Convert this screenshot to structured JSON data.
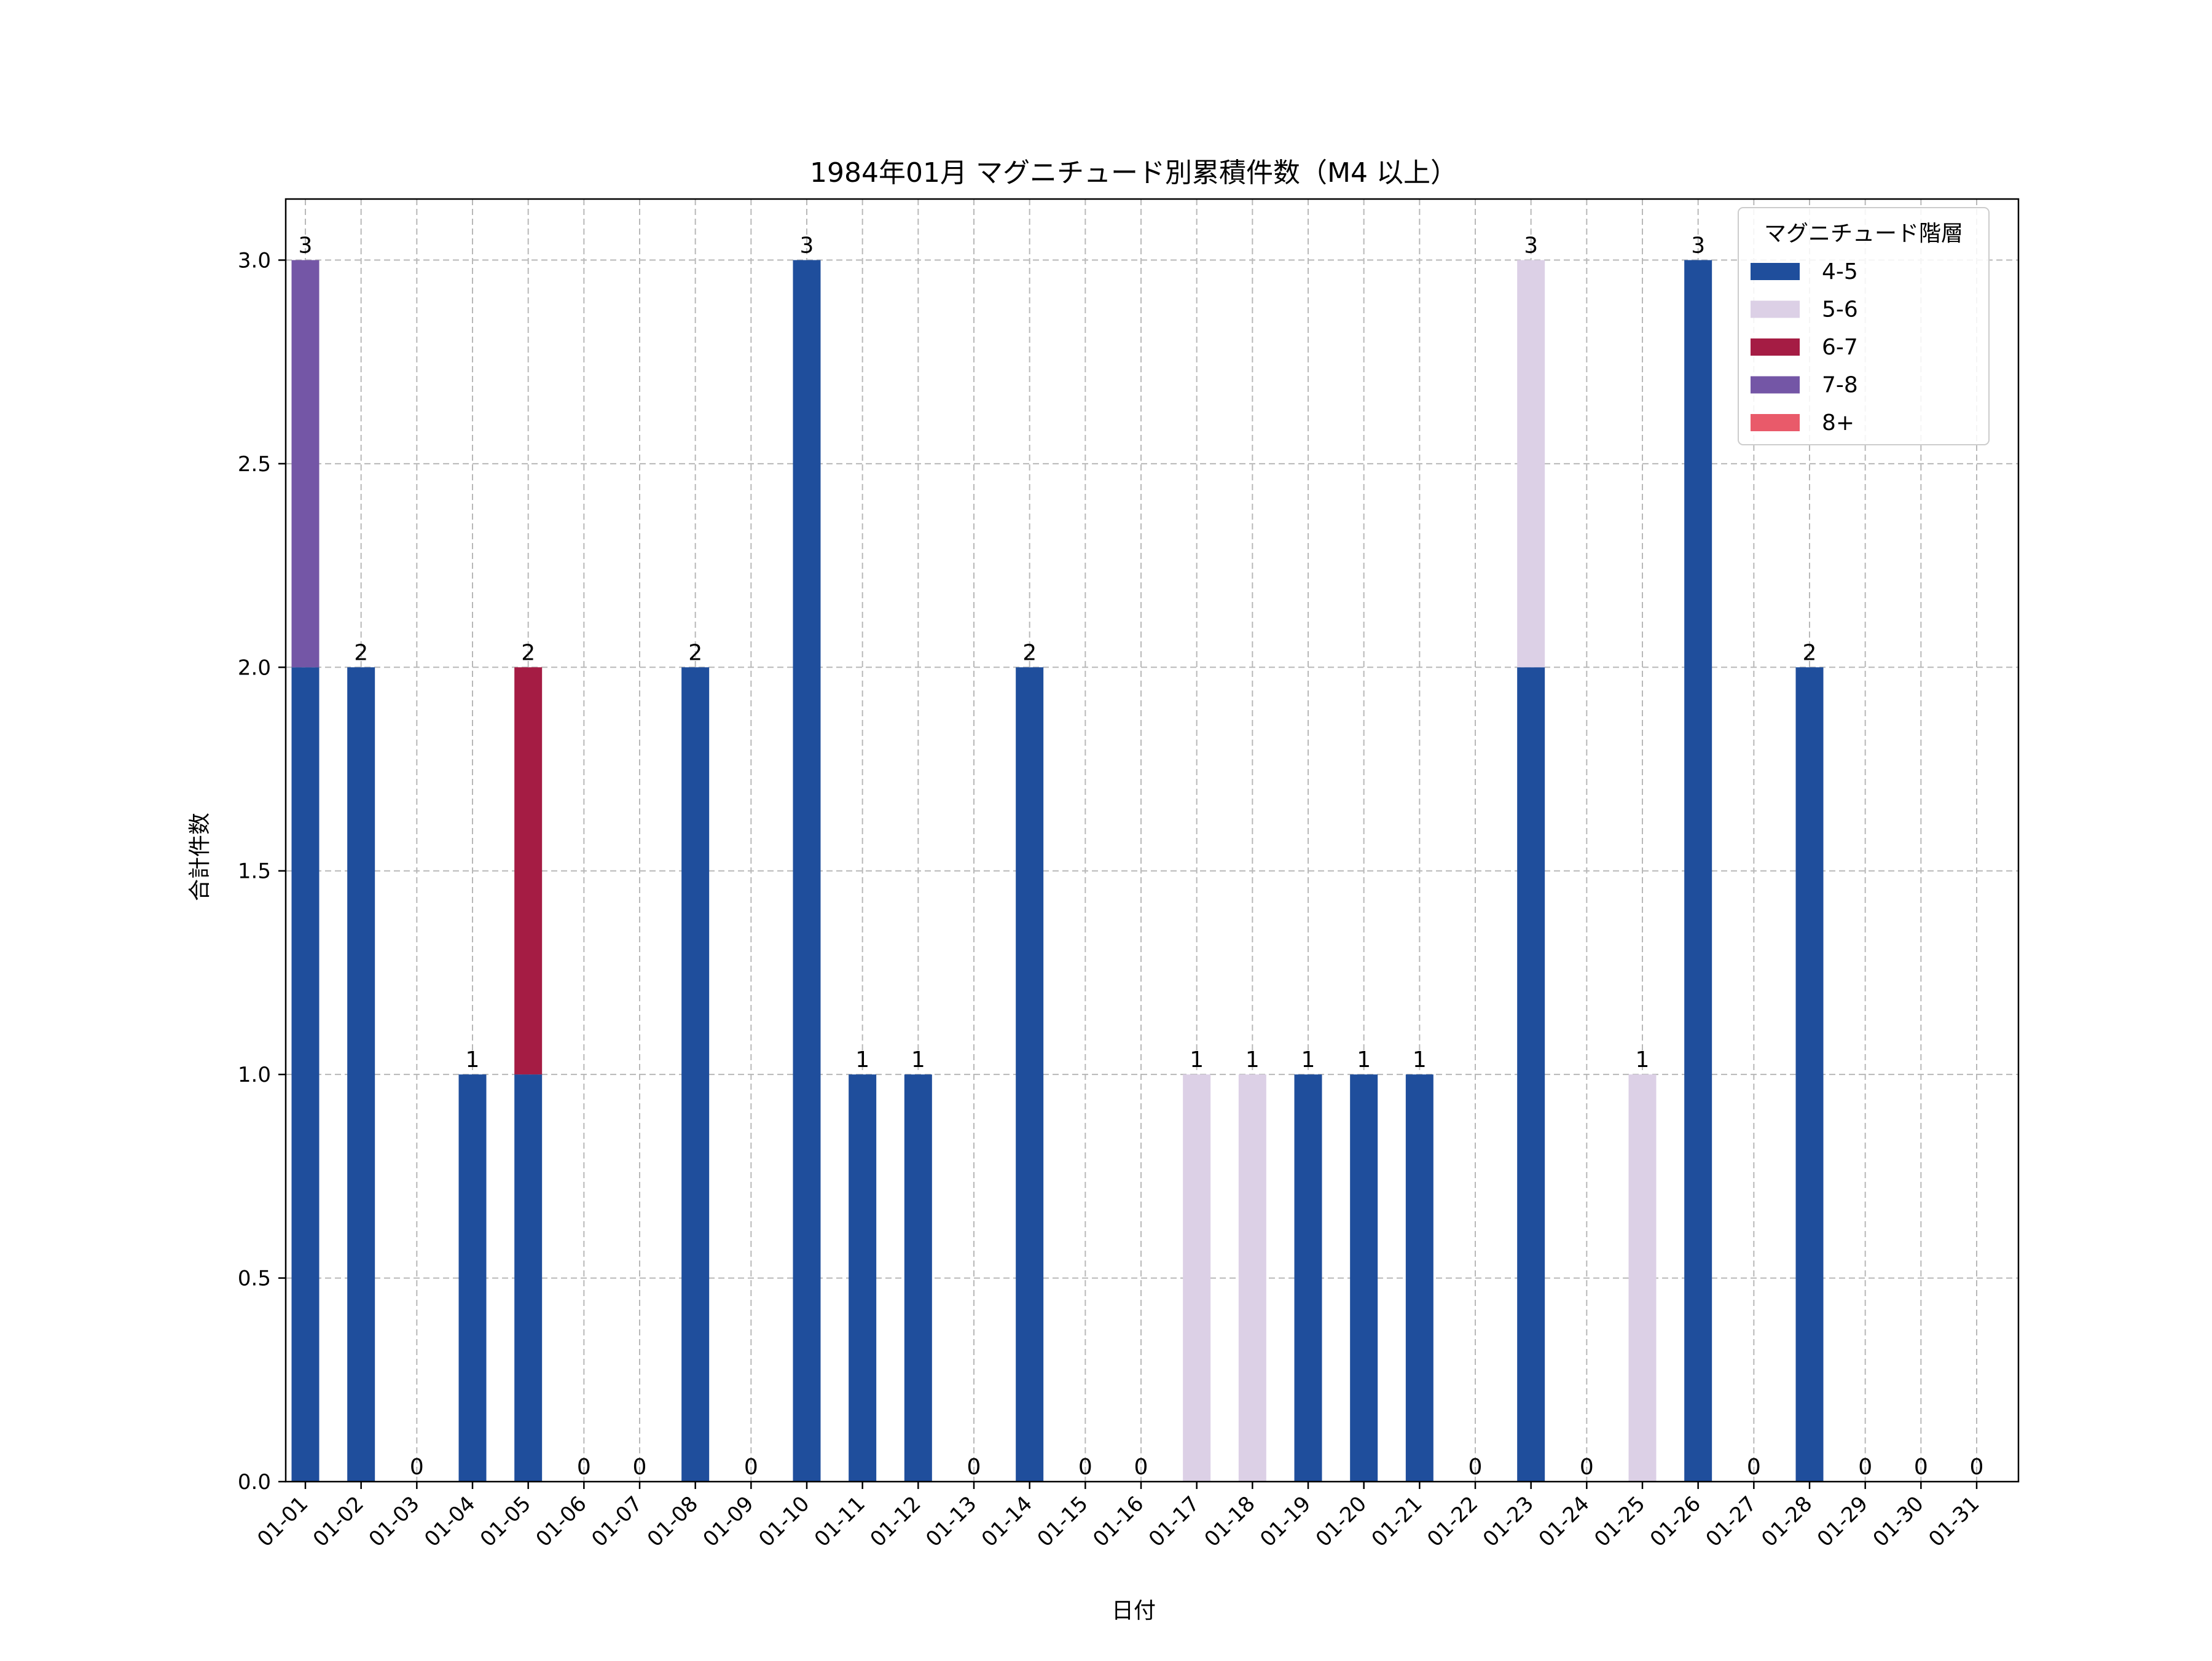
{
  "chart_data": {
    "type": "bar",
    "stacked": true,
    "title": "1984年01月 マグニチュード別累積件数（M4 以上）",
    "xlabel": "日付",
    "ylabel": "合計件数",
    "ylim": [
      0,
      3.15
    ],
    "yticks": [
      "0.0",
      "0.5",
      "1.0",
      "1.5",
      "2.0",
      "2.5",
      "3.0"
    ],
    "ytick_values": [
      0,
      0.5,
      1.0,
      1.5,
      2.0,
      2.5,
      3.0
    ],
    "grid": true,
    "legend_title": "マグニチュード階層",
    "legend_position": "top-right",
    "categories": [
      "01-01",
      "01-02",
      "01-03",
      "01-04",
      "01-05",
      "01-06",
      "01-07",
      "01-08",
      "01-09",
      "01-10",
      "01-11",
      "01-12",
      "01-13",
      "01-14",
      "01-15",
      "01-16",
      "01-17",
      "01-18",
      "01-19",
      "01-20",
      "01-21",
      "01-22",
      "01-23",
      "01-24",
      "01-25",
      "01-26",
      "01-27",
      "01-28",
      "01-29",
      "01-30",
      "01-31"
    ],
    "series": [
      {
        "name": "4-5",
        "color": "#1f4e9c",
        "values": [
          2,
          2,
          0,
          1,
          1,
          0,
          0,
          2,
          0,
          3,
          1,
          1,
          0,
          2,
          0,
          0,
          0,
          0,
          1,
          1,
          1,
          0,
          2,
          0,
          0,
          3,
          0,
          2,
          0,
          0,
          0
        ]
      },
      {
        "name": "5-6",
        "color": "#dcd0e6",
        "values": [
          0,
          0,
          0,
          0,
          0,
          0,
          0,
          0,
          0,
          0,
          0,
          0,
          0,
          0,
          0,
          0,
          1,
          1,
          0,
          0,
          0,
          0,
          1,
          0,
          1,
          0,
          0,
          0,
          0,
          0,
          0
        ]
      },
      {
        "name": "6-7",
        "color": "#a51c44",
        "values": [
          0,
          0,
          0,
          0,
          1,
          0,
          0,
          0,
          0,
          0,
          0,
          0,
          0,
          0,
          0,
          0,
          0,
          0,
          0,
          0,
          0,
          0,
          0,
          0,
          0,
          0,
          0,
          0,
          0,
          0,
          0
        ]
      },
      {
        "name": "7-8",
        "color": "#7456a6",
        "values": [
          1,
          0,
          0,
          0,
          0,
          0,
          0,
          0,
          0,
          0,
          0,
          0,
          0,
          0,
          0,
          0,
          0,
          0,
          0,
          0,
          0,
          0,
          0,
          0,
          0,
          0,
          0,
          0,
          0,
          0,
          0
        ]
      },
      {
        "name": "8+",
        "color": "#e95a6a",
        "values": [
          0,
          0,
          0,
          0,
          0,
          0,
          0,
          0,
          0,
          0,
          0,
          0,
          0,
          0,
          0,
          0,
          0,
          0,
          0,
          0,
          0,
          0,
          0,
          0,
          0,
          0,
          0,
          0,
          0,
          0,
          0
        ]
      }
    ],
    "totals": [
      "3",
      "2",
      "0",
      "1",
      "2",
      "0",
      "0",
      "2",
      "0",
      "3",
      "1",
      "1",
      "0",
      "2",
      "0",
      "0",
      "1",
      "1",
      "1",
      "1",
      "1",
      "0",
      "3",
      "0",
      "1",
      "3",
      "0",
      "2",
      "0",
      "0",
      "0"
    ]
  }
}
